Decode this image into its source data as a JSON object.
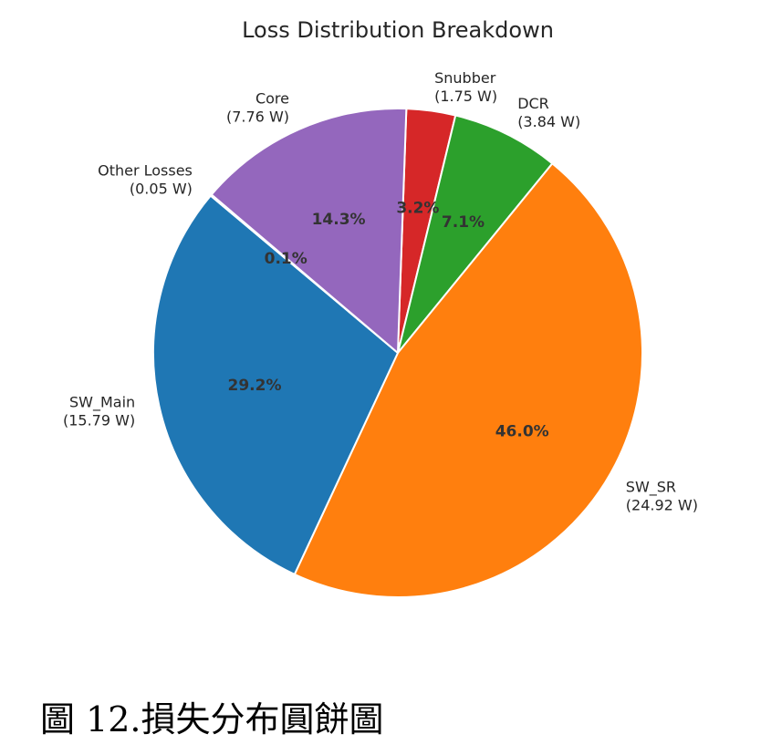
{
  "chart_data": {
    "type": "pie",
    "title": "Loss Distribution Breakdown",
    "unit": "W",
    "slices": [
      {
        "category": "Snubber",
        "value": 1.75,
        "value_label": "(1.75 W)",
        "percent_label": "3.2%",
        "color": "#d62728"
      },
      {
        "category": "DCR",
        "value": 3.84,
        "value_label": "(3.84 W)",
        "percent_label": "7.1%",
        "color": "#2ca02c"
      },
      {
        "category": "SW_SR",
        "value": 24.92,
        "value_label": "(24.92 W)",
        "percent_label": "46.0%",
        "color": "#ff7f0e"
      },
      {
        "category": "SW_Main",
        "value": 15.79,
        "value_label": "(15.79 W)",
        "percent_label": "29.2%",
        "color": "#1f77b4"
      },
      {
        "category": "Other Losses",
        "value": 0.05,
        "value_label": "(0.05 W)",
        "percent_label": "0.1%",
        "color": "#8c564b"
      },
      {
        "category": "Core",
        "value": 7.76,
        "value_label": "(7.76 W)",
        "percent_label": "14.3%",
        "color": "#9467bd"
      }
    ]
  },
  "caption": "圖 12.損失分布圓餅圖"
}
